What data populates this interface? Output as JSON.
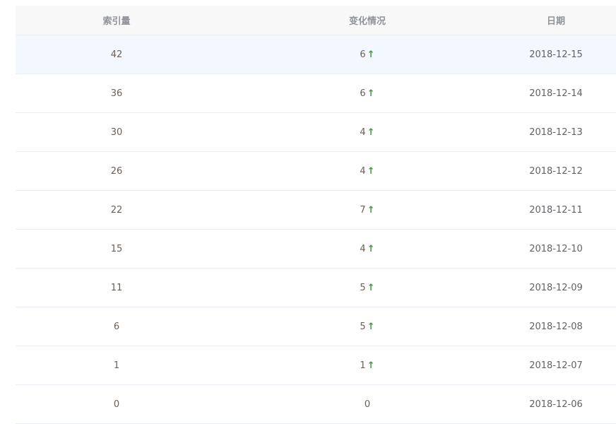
{
  "columns": {
    "index": "索引量",
    "change": "变化情况",
    "date": "日期"
  },
  "up_color": "#3f9b3a",
  "rows": [
    {
      "index": "42",
      "change": "6",
      "trend": "up",
      "date": "2018-12-15"
    },
    {
      "index": "36",
      "change": "6",
      "trend": "up",
      "date": "2018-12-14"
    },
    {
      "index": "30",
      "change": "4",
      "trend": "up",
      "date": "2018-12-13"
    },
    {
      "index": "26",
      "change": "4",
      "trend": "up",
      "date": "2018-12-12"
    },
    {
      "index": "22",
      "change": "7",
      "trend": "up",
      "date": "2018-12-11"
    },
    {
      "index": "15",
      "change": "4",
      "trend": "up",
      "date": "2018-12-10"
    },
    {
      "index": "11",
      "change": "5",
      "trend": "up",
      "date": "2018-12-09"
    },
    {
      "index": "6",
      "change": "5",
      "trend": "up",
      "date": "2018-12-08"
    },
    {
      "index": "1",
      "change": "1",
      "trend": "up",
      "date": "2018-12-07"
    },
    {
      "index": "0",
      "change": "0",
      "trend": "none",
      "date": "2018-12-06"
    }
  ]
}
